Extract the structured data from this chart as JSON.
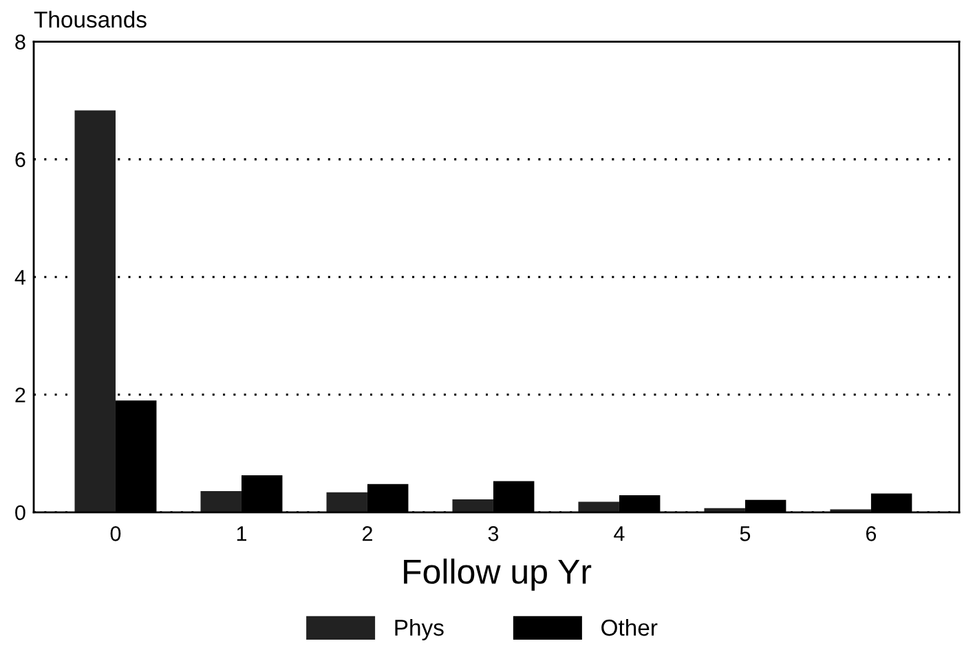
{
  "chart_data": {
    "type": "bar",
    "xlabel": "Follow up Yr",
    "ylabel": "Thousands",
    "categories": [
      "0",
      "1",
      "2",
      "3",
      "4",
      "5",
      "6"
    ],
    "series": [
      {
        "name": "Phys",
        "color": "#222222",
        "values": [
          6.83,
          0.36,
          0.34,
          0.22,
          0.18,
          0.07,
          0.05
        ]
      },
      {
        "name": "Other",
        "color": "#000000",
        "values": [
          1.9,
          0.63,
          0.48,
          0.53,
          0.29,
          0.21,
          0.32
        ]
      }
    ],
    "ylim": [
      0,
      8
    ],
    "yticks": [
      0,
      2,
      4,
      6,
      8
    ],
    "grid": "y",
    "legend": "bottom"
  }
}
